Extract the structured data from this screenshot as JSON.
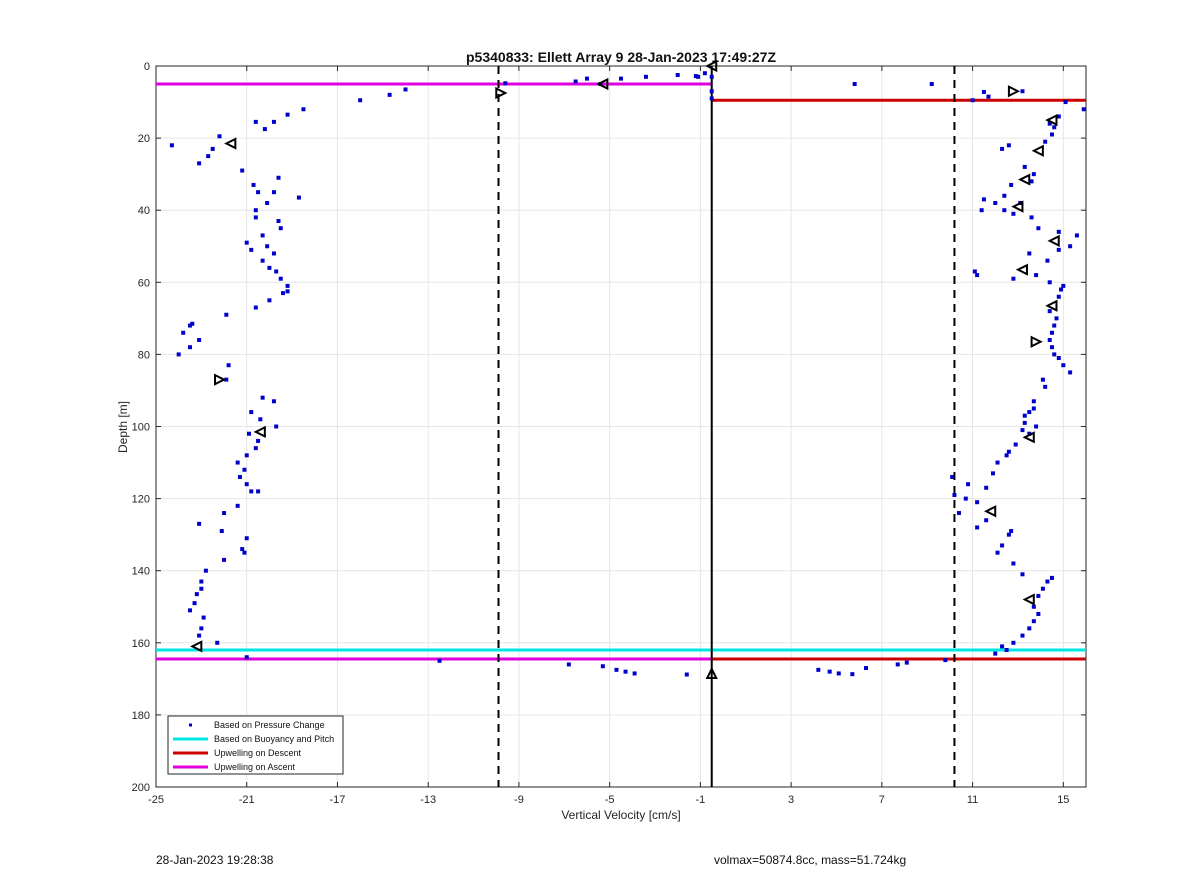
{
  "chart_data": {
    "type": "scatter",
    "title": "p5340833: Ellett Array 9 28-Jan-2023 17:49:27Z",
    "xlabel": "Vertical Velocity [cm/s]",
    "ylabel": "Depth [m]",
    "xlim": [
      -25,
      16
    ],
    "ylim": [
      0,
      200
    ],
    "y_reversed": true,
    "grid": true,
    "legend_position": "bottom-left",
    "xticks": [
      -25,
      -21,
      -17,
      -13,
      -9,
      -5,
      -1,
      3,
      7,
      11,
      15
    ],
    "yticks": [
      0,
      20,
      40,
      60,
      80,
      100,
      120,
      140,
      160,
      180,
      200
    ],
    "series": [
      {
        "name": "Based on Pressure Change",
        "marker": "point",
        "color": "#0000cc",
        "points": [
          [
            -0.8,
            2
          ],
          [
            -0.5,
            3
          ],
          [
            -1.2,
            2.8
          ],
          [
            -1.1,
            3
          ],
          [
            -2,
            2.5
          ],
          [
            -3.4,
            3
          ],
          [
            -4.5,
            3.5
          ],
          [
            -5.4,
            5
          ],
          [
            -6,
            3.5
          ],
          [
            -6.5,
            4.3
          ],
          [
            -9.6,
            4.8
          ],
          [
            -14,
            6.5
          ],
          [
            -14.7,
            8
          ],
          [
            -16,
            9.5
          ],
          [
            -18.5,
            12
          ],
          [
            -19.2,
            13.5
          ],
          [
            -19.8,
            15.5
          ],
          [
            -20.6,
            15.5
          ],
          [
            -20.2,
            17.5
          ],
          [
            -22.2,
            19.5
          ],
          [
            -22.5,
            23
          ],
          [
            -22.7,
            25
          ],
          [
            -23.1,
            27
          ],
          [
            -24.3,
            22
          ],
          [
            -21.2,
            29
          ],
          [
            -19.6,
            31
          ],
          [
            -20.7,
            33
          ],
          [
            -19.8,
            35
          ],
          [
            -20.5,
            35
          ],
          [
            -18.7,
            36.5
          ],
          [
            -20.1,
            38
          ],
          [
            -20.6,
            40
          ],
          [
            -19.6,
            43
          ],
          [
            -20.6,
            42
          ],
          [
            -19.5,
            45
          ],
          [
            -20.3,
            47
          ],
          [
            -21,
            49
          ],
          [
            -20.1,
            50
          ],
          [
            -19.8,
            52
          ],
          [
            -20.8,
            51
          ],
          [
            -20.3,
            54
          ],
          [
            -20,
            56
          ],
          [
            -19.7,
            57
          ],
          [
            -19.5,
            59
          ],
          [
            -19.2,
            61
          ],
          [
            -19.2,
            62.5
          ],
          [
            -19.4,
            63
          ],
          [
            -20,
            65
          ],
          [
            -20.6,
            67
          ],
          [
            -21.9,
            69
          ],
          [
            -23.4,
            71.5
          ],
          [
            -23.5,
            72
          ],
          [
            -23.8,
            74
          ],
          [
            -23.1,
            76
          ],
          [
            -23.5,
            78
          ],
          [
            -24,
            80
          ],
          [
            -21.8,
            83
          ],
          [
            -21.9,
            87
          ],
          [
            -20.3,
            92
          ],
          [
            -19.8,
            93
          ],
          [
            -20.8,
            96
          ],
          [
            -20.4,
            98
          ],
          [
            -19.7,
            100
          ],
          [
            -20.9,
            102
          ],
          [
            -20.5,
            104
          ],
          [
            -21,
            108
          ],
          [
            -20.6,
            106
          ],
          [
            -21.4,
            110
          ],
          [
            -21.1,
            112
          ],
          [
            -21.3,
            114
          ],
          [
            -21,
            116
          ],
          [
            -20.8,
            118
          ],
          [
            -20.5,
            118
          ],
          [
            -21.4,
            122
          ],
          [
            -22,
            124
          ],
          [
            -23.1,
            127
          ],
          [
            -22.1,
            129
          ],
          [
            -21,
            131
          ],
          [
            -21.2,
            134
          ],
          [
            -21.1,
            135
          ],
          [
            -22,
            137
          ],
          [
            -22.8,
            140
          ],
          [
            -23,
            143
          ],
          [
            -23,
            145
          ],
          [
            -23.2,
            146.5
          ],
          [
            -23.3,
            149
          ],
          [
            -23.5,
            151
          ],
          [
            -22.9,
            153
          ],
          [
            -23,
            156
          ],
          [
            -23.1,
            158
          ],
          [
            -22.3,
            160
          ],
          [
            -21,
            164
          ],
          [
            -12.5,
            165
          ],
          [
            -6.8,
            166
          ],
          [
            -5.3,
            166.5
          ],
          [
            -4.7,
            167.5
          ],
          [
            -4.3,
            168
          ],
          [
            -3.9,
            168.5
          ],
          [
            -1.6,
            168.8
          ],
          [
            4.2,
            167.5
          ],
          [
            4.7,
            168
          ],
          [
            5.1,
            168.5
          ],
          [
            5.7,
            168.7
          ],
          [
            6.3,
            167
          ],
          [
            7.7,
            166
          ],
          [
            8.1,
            165.5
          ],
          [
            9.8,
            164.8
          ],
          [
            12,
            163
          ],
          [
            12.5,
            162
          ],
          [
            12.3,
            161
          ],
          [
            12.8,
            160
          ],
          [
            13.2,
            158
          ],
          [
            13.5,
            156
          ],
          [
            13.7,
            154
          ],
          [
            13.9,
            152
          ],
          [
            13.7,
            150
          ],
          [
            13.9,
            147
          ],
          [
            14.1,
            145
          ],
          [
            14.3,
            143
          ],
          [
            14.5,
            142
          ],
          [
            13.2,
            141
          ],
          [
            12.8,
            138
          ],
          [
            12.1,
            135
          ],
          [
            12.3,
            133
          ],
          [
            12.6,
            130
          ],
          [
            12.7,
            129
          ],
          [
            11.2,
            128
          ],
          [
            11.6,
            126
          ],
          [
            11.2,
            121
          ],
          [
            10.4,
            124
          ],
          [
            10.7,
            120
          ],
          [
            10.2,
            119
          ],
          [
            11.6,
            117
          ],
          [
            10.8,
            116
          ],
          [
            10.1,
            114
          ],
          [
            11.9,
            113
          ],
          [
            12.1,
            110
          ],
          [
            12.5,
            108
          ],
          [
            12.6,
            107
          ],
          [
            12.9,
            105
          ],
          [
            13.5,
            102
          ],
          [
            13.2,
            101
          ],
          [
            13.8,
            100
          ],
          [
            13.3,
            99
          ],
          [
            13.3,
            97
          ],
          [
            13.5,
            96
          ],
          [
            13.7,
            95
          ],
          [
            13.7,
            93
          ],
          [
            14.2,
            89
          ],
          [
            14.1,
            87
          ],
          [
            15.3,
            85
          ],
          [
            15,
            83
          ],
          [
            14.8,
            81
          ],
          [
            14.6,
            80
          ],
          [
            14.5,
            78
          ],
          [
            14.4,
            76
          ],
          [
            14.5,
            74
          ],
          [
            14.6,
            72
          ],
          [
            14.7,
            70
          ],
          [
            14.4,
            68
          ],
          [
            14.8,
            64
          ],
          [
            14.9,
            62
          ],
          [
            15,
            61
          ],
          [
            14.4,
            60
          ],
          [
            13.8,
            58
          ],
          [
            11.1,
            57
          ],
          [
            11.2,
            58
          ],
          [
            12.8,
            59
          ],
          [
            14.3,
            54
          ],
          [
            13.5,
            52
          ],
          [
            14.8,
            51
          ],
          [
            15.3,
            50
          ],
          [
            15.6,
            47
          ],
          [
            14.8,
            46
          ],
          [
            13.9,
            45
          ],
          [
            13.6,
            42
          ],
          [
            12.8,
            41
          ],
          [
            12.4,
            40
          ],
          [
            11.4,
            40
          ],
          [
            12,
            38
          ],
          [
            13.1,
            38
          ],
          [
            11.5,
            37
          ],
          [
            12.4,
            36
          ],
          [
            12.7,
            33
          ],
          [
            13.6,
            32
          ],
          [
            13.7,
            30
          ],
          [
            13.3,
            28
          ],
          [
            12.3,
            23
          ],
          [
            12.6,
            22
          ],
          [
            14.2,
            21
          ],
          [
            14.5,
            19
          ],
          [
            14.6,
            17
          ],
          [
            14.4,
            16
          ],
          [
            14.8,
            14
          ],
          [
            15.9,
            12
          ],
          [
            15.1,
            10
          ],
          [
            11,
            9.5
          ],
          [
            11.7,
            8.5
          ],
          [
            13.2,
            7
          ],
          [
            11.5,
            7.2
          ],
          [
            9.2,
            5
          ],
          [
            5.8,
            5
          ],
          [
            -0.5,
            9
          ],
          [
            -0.5,
            7
          ]
        ]
      },
      {
        "name": "Based on Buoyancy and Pitch",
        "color": "#00e5e5",
        "hlines": [
          {
            "y": 162,
            "x0": -25,
            "x1": 16
          }
        ]
      },
      {
        "name": "Upwelling on Descent",
        "color": "#cc0000",
        "hlines": [
          {
            "y": 9.5,
            "x0": -0.5,
            "x1": 16
          },
          {
            "y": 164.5,
            "x0": -0.5,
            "x1": 16
          }
        ]
      },
      {
        "name": "Upwelling on Ascent",
        "color": "#e000e0",
        "hlines": [
          {
            "y": 5,
            "x0": -25,
            "x1": -0.5
          },
          {
            "y": 164.5,
            "x0": -25,
            "x1": -0.5
          }
        ]
      }
    ],
    "triangles": [
      {
        "x": -0.5,
        "y": 0,
        "dir": "left"
      },
      {
        "x": -9.8,
        "y": 7.5,
        "dir": "right"
      },
      {
        "x": -5.3,
        "y": 5,
        "dir": "left"
      },
      {
        "x": -21.7,
        "y": 21.5,
        "dir": "left"
      },
      {
        "x": -22.2,
        "y": 87,
        "dir": "right"
      },
      {
        "x": -20.4,
        "y": 101.5,
        "dir": "left"
      },
      {
        "x": -23.2,
        "y": 161,
        "dir": "left"
      },
      {
        "x": -0.5,
        "y": 168.5,
        "dir": "up"
      },
      {
        "x": 12.8,
        "y": 7,
        "dir": "right"
      },
      {
        "x": 14.5,
        "y": 15,
        "dir": "left"
      },
      {
        "x": 13.9,
        "y": 23.5,
        "dir": "left"
      },
      {
        "x": 13.3,
        "y": 31.5,
        "dir": "left"
      },
      {
        "x": 13.0,
        "y": 39,
        "dir": "left"
      },
      {
        "x": 14.6,
        "y": 48.5,
        "dir": "left"
      },
      {
        "x": 13.2,
        "y": 56.5,
        "dir": "left"
      },
      {
        "x": 14.5,
        "y": 66.5,
        "dir": "left"
      },
      {
        "x": 13.8,
        "y": 76.5,
        "dir": "right"
      },
      {
        "x": 13.5,
        "y": 103,
        "dir": "left"
      },
      {
        "x": 11.8,
        "y": 123.5,
        "dir": "left"
      },
      {
        "x": 13.5,
        "y": 148,
        "dir": "left"
      }
    ],
    "vlines": [
      {
        "x": -0.5,
        "style": "solid",
        "color": "#000000"
      },
      {
        "x": -9.9,
        "style": "dashed",
        "color": "#000000"
      },
      {
        "x": 10.2,
        "style": "dashed",
        "color": "#000000"
      }
    ]
  },
  "footer": {
    "timestamp": "28-Jan-2023 19:28:38",
    "info": "volmax=50874.8cc, mass=51.724kg"
  }
}
